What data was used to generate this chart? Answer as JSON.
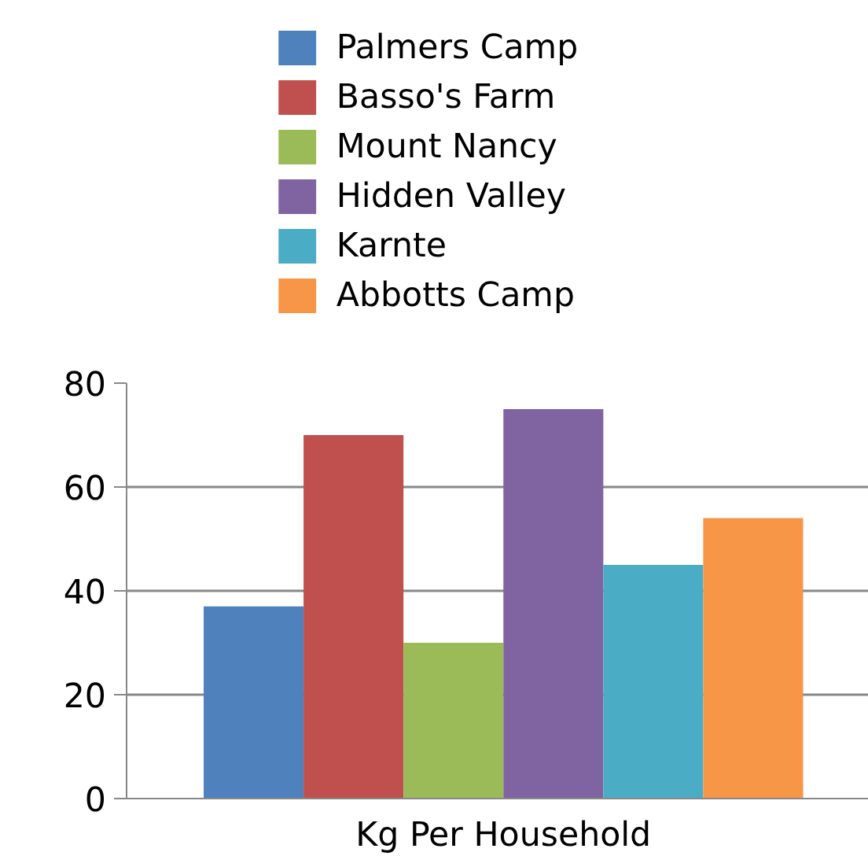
{
  "chart_data": {
    "type": "bar",
    "categories": [
      "Kg Per Household"
    ],
    "series": [
      {
        "name": "Palmers Camp",
        "color": "#4f81bd",
        "values": [
          37
        ]
      },
      {
        "name": "Basso's Farm",
        "color": "#c0504d",
        "values": [
          70
        ]
      },
      {
        "name": "Mount Nancy",
        "color": "#9bbb59",
        "values": [
          30
        ]
      },
      {
        "name": "Hidden Valley",
        "color": "#8064a2",
        "values": [
          75
        ]
      },
      {
        "name": "Karnte",
        "color": "#4bacc6",
        "values": [
          45
        ]
      },
      {
        "name": "Abbotts Camp",
        "color": "#f79646",
        "values": [
          54
        ]
      }
    ],
    "ylim": [
      0,
      80
    ],
    "yticks": [
      0,
      20,
      40,
      60,
      80
    ],
    "grid": "y",
    "legend": "top"
  }
}
